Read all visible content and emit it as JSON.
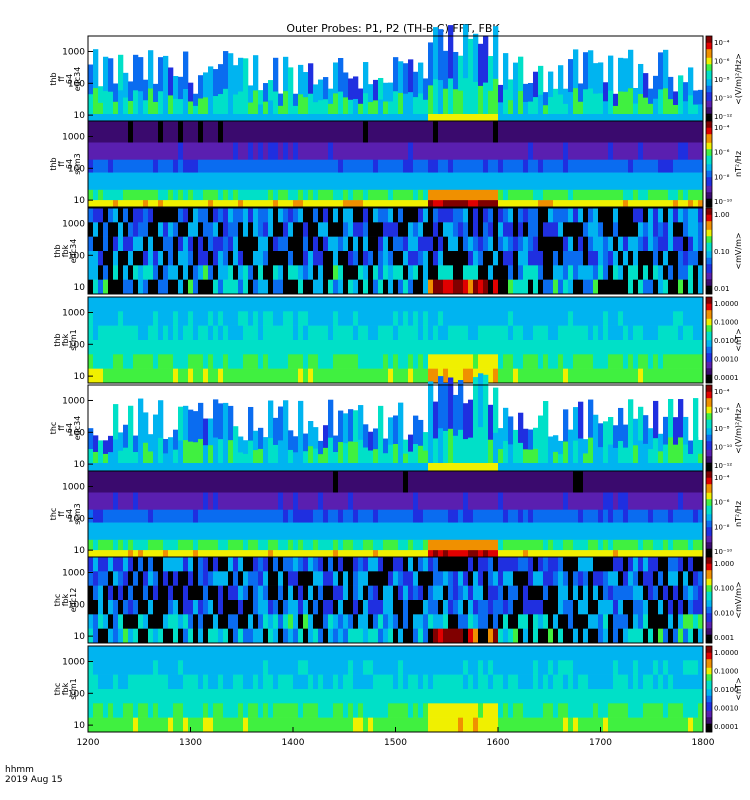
{
  "title": "Outer Probes: P1, P2 (TH-B,C) FFT, FBK",
  "time_axis": {
    "label": "hhmm",
    "date": "2019 Aug 15",
    "range": [
      1200,
      1800
    ],
    "ticks": [
      "1200",
      "1300",
      "1400",
      "1500",
      "1600",
      "1700",
      "1800"
    ]
  },
  "colors": {
    "palette": [
      "#000000",
      "#3a0a6e",
      "#5a1fb0",
      "#1f2fe0",
      "#0a6cf0",
      "#00b4f0",
      "#00e0c8",
      "#40f040",
      "#f0f000",
      "#f09000",
      "#e00000",
      "#800000"
    ]
  },
  "chart_data": [
    {
      "type": "heatmap",
      "name": "thb-ffp-e34",
      "ylabel": [
        "thb",
        "ff",
        "64",
        "edc34"
      ],
      "y_scale": "log",
      "y_ticks": [
        "10",
        "100",
        "1000"
      ],
      "colorbar_unit": "<(V/m)²/Hz>",
      "colorbar_ticks": [
        "10⁻¹²",
        "10⁻¹⁰",
        "10⁻⁸",
        "10⁻⁶",
        "10⁻⁴"
      ],
      "profile": "efield_sparse"
    },
    {
      "type": "heatmap",
      "name": "thb-ffp-scm3",
      "ylabel": [
        "thb",
        "ff",
        "64",
        "scm3"
      ],
      "y_scale": "log",
      "y_ticks": [
        "10",
        "100",
        "1000"
      ],
      "colorbar_unit": "nT²/Hz",
      "colorbar_ticks": [
        "10⁻¹⁰",
        "10⁻⁸",
        "10⁻⁶",
        "10⁻⁴"
      ],
      "profile": "scm_noise"
    },
    {
      "type": "heatmap",
      "name": "thb-fbk-edc34",
      "ylabel": [
        "thb",
        "fbk",
        "edc34"
      ],
      "y_scale": "log",
      "y_ticks": [
        "10",
        "100",
        "1000"
      ],
      "colorbar_unit": "<mV/m>",
      "colorbar_ticks": [
        "0.01",
        "0.10",
        "1.00"
      ],
      "profile": "fbk_e"
    },
    {
      "type": "heatmap",
      "name": "thb-fbk-scm1",
      "ylabel": [
        "thb",
        "fbk",
        "scm1"
      ],
      "y_scale": "log",
      "y_ticks": [
        "10",
        "100",
        "1000"
      ],
      "colorbar_unit": "<nT>",
      "colorbar_ticks": [
        "0.0001",
        "0.0010",
        "0.0100",
        "0.1000",
        "1.0000"
      ],
      "profile": "fbk_b"
    },
    {
      "type": "heatmap",
      "name": "thc-ffp-e34",
      "ylabel": [
        "thc",
        "ff",
        "64",
        "edc34"
      ],
      "y_scale": "log",
      "y_ticks": [
        "10",
        "100",
        "1000"
      ],
      "colorbar_unit": "<(V/m)²/Hz>",
      "colorbar_ticks": [
        "10⁻¹²",
        "10⁻¹⁰",
        "10⁻⁸",
        "10⁻⁶",
        "10⁻⁴"
      ],
      "profile": "efield_sparse"
    },
    {
      "type": "heatmap",
      "name": "thc-ffp-scm3",
      "ylabel": [
        "thc",
        "ff",
        "64",
        "scm3"
      ],
      "y_scale": "log",
      "y_ticks": [
        "10",
        "100",
        "1000"
      ],
      "colorbar_unit": "nT²/Hz",
      "colorbar_ticks": [
        "10⁻¹⁰",
        "10⁻⁸",
        "10⁻⁶",
        "10⁻⁴"
      ],
      "profile": "scm_noise"
    },
    {
      "type": "heatmap",
      "name": "thc-fbk-edc12",
      "ylabel": [
        "thc",
        "fbk",
        "edc12"
      ],
      "y_scale": "log",
      "y_ticks": [
        "10",
        "100",
        "1000"
      ],
      "colorbar_unit": "<mV/m>",
      "colorbar_ticks": [
        "0.001",
        "0.010",
        "0.100",
        "1.000"
      ],
      "profile": "fbk_e"
    },
    {
      "type": "heatmap",
      "name": "thc-fbk-scm1",
      "ylabel": [
        "thc",
        "fbk",
        "scm1"
      ],
      "y_scale": "log",
      "y_ticks": [
        "10",
        "100",
        "1000"
      ],
      "colorbar_unit": "<nT>",
      "colorbar_ticks": [
        "0.0001",
        "0.0010",
        "0.0100",
        "0.1000",
        "1.0000"
      ],
      "profile": "fbk_b"
    }
  ]
}
